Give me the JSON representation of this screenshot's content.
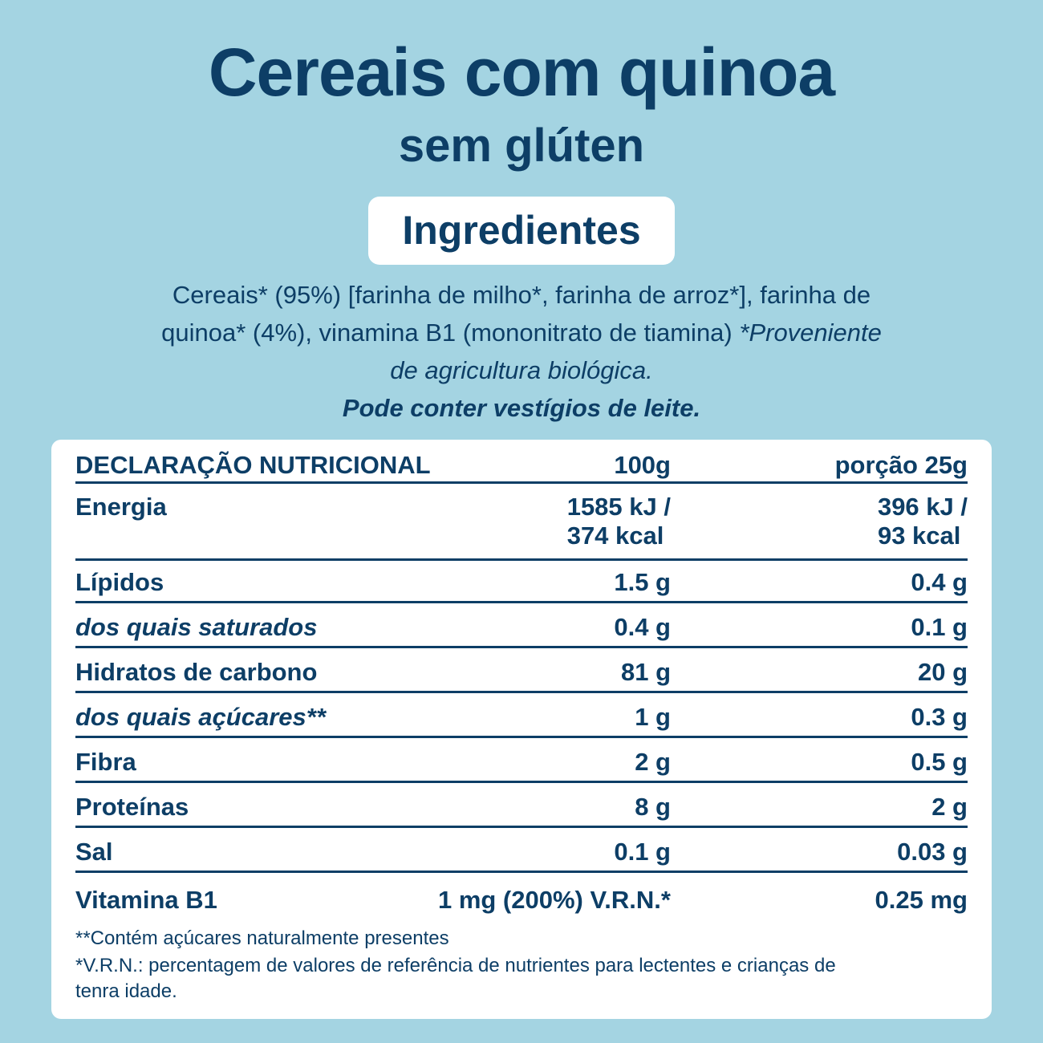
{
  "header": {
    "title": "Cereais com quinoa",
    "subtitle": "sem glúten"
  },
  "ingredients": {
    "heading": "Ingredientes",
    "text": "Cereais* (95%) [farinha de milho*, farinha de arroz*], farinha de quinoa* (4%), vinamina B1 (mononitrato de tiamina)",
    "note": "*Proveniente de agricultura biológica.",
    "warning": "Pode conter vestígios de leite."
  },
  "table": {
    "header": [
      "DECLARAÇÃO NUTRICIONAL",
      "100g",
      "porção 25g"
    ],
    "energy": {
      "label": "Energia",
      "per100": [
        "1585 kJ /",
        "374 kcal"
      ],
      "portion": [
        "396 kJ /",
        "93 kcal"
      ]
    },
    "rows": [
      [
        "Lípidos",
        "1.5 g",
        "0.4 g"
      ],
      [
        "dos quais saturados",
        "0.4 g",
        "0.1 g"
      ],
      [
        "Hidratos de carbono",
        "81 g",
        "20 g"
      ],
      [
        "dos quais açúcares**",
        "1 g",
        "0.3 g"
      ],
      [
        "Fibra",
        "2 g",
        "0.5 g"
      ],
      [
        "Proteínas",
        "8 g",
        "2 g"
      ],
      [
        "Sal",
        "0.1 g",
        "0.03 g"
      ]
    ],
    "vitamin": [
      "Vitamina B1",
      "1 mg (200%) V.R.N.*",
      "0.25 mg"
    ],
    "footnotes": [
      "**Contém açúcares naturalmente presentes",
      "*V.R.N.: percentagem de valores de referência de nutrientes para lectentes e crianças de tenra idade."
    ]
  }
}
